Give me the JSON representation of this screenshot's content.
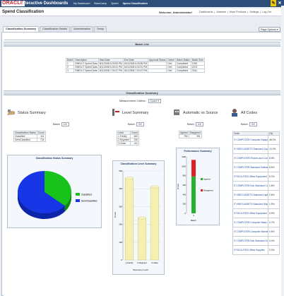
{
  "topbar": {
    "logo": "ORACLE",
    "app_title": "Interactive Dashboards",
    "nav": [
      "My Dashboard",
      "BaseCamp",
      "Speed",
      "Spend Classification"
    ]
  },
  "header": {
    "page_title": "Spend Classification",
    "welcome": "Welcome, Administrator!",
    "links": [
      "Dashboards",
      "Answers",
      "More Products",
      "Settings",
      "Log Out"
    ]
  },
  "tabs": [
    {
      "label": "Classification Summary",
      "selected": true
    },
    {
      "label": "Classification Details",
      "selected": false
    },
    {
      "label": "Administration",
      "selected": false
    },
    {
      "label": "Setup",
      "selected": false
    }
  ],
  "page_options": "Page Options",
  "batch_list": {
    "title": "Batch List",
    "columns": [
      "Batch",
      "Description",
      "Start Date",
      "End Date",
      "Approval Status",
      "Owner",
      "Batch Status",
      "Batch Size"
    ],
    "rows": [
      [
        "1",
        "EMEA IT Spend Data",
        "8/11/2008 6:33:55 PM",
        "8/11/2008 6:33:55 PM",
        "",
        "Deb",
        "Completed",
        "1196"
      ],
      [
        "2",
        "EMEA IT Spend Data",
        "8/11/2008 6:39:31 PM",
        "8/11/2008 6:44:31 PM",
        "",
        "Deb",
        "Completed",
        "2373"
      ],
      [
        "3",
        "EMEA IT Spend Data",
        "8/11/2008 7:00:47 PM",
        "8/11/2008 7:00:47 PM",
        "",
        "Deb",
        "Completed",
        "2341"
      ]
    ]
  },
  "classification_summary": {
    "title": "Classification Summary",
    "measurement_label": "Measurement Criteria :",
    "measurement_value": "Count"
  },
  "status_panel": {
    "title": "Status Summary",
    "batch_label": "Batch",
    "batch_value": "4",
    "columns": [
      "Classification Status",
      "Count"
    ],
    "rows": [
      [
        "Classified",
        "411"
      ],
      [
        "SemiClassified",
        "724"
      ]
    ],
    "chart_title": "Classification Status Summary",
    "legend": [
      "Classified",
      "SemiClassified"
    ]
  },
  "level_panel": {
    "title": "Level Summary",
    "batch_label": "Batch",
    "batch_value": "4",
    "columns": [
      "Level",
      "Count"
    ],
    "rows": [
      [
        "1-Family",
        "460"
      ],
      [
        "2-Segment",
        "236"
      ],
      [
        "3-Class",
        "411"
      ]
    ],
    "chart_title": "Classification Level Summary",
    "y_label": "Count",
    "x_label": "Taxonomy Level"
  },
  "auto_panel": {
    "title": "Automatic vs Source",
    "batch_label": "Batch",
    "batch_value": "4",
    "columns": [
      "Agreed",
      "Disagreed"
    ],
    "row": [
      "784",
      "351"
    ],
    "chart_title": "Performance Summary",
    "y_label": "Count",
    "legend": [
      "Agreed",
      "Disagreed"
    ],
    "x_label": "Batch"
  },
  "codes_panel": {
    "title": "All Codes",
    "batch_label": "Batch",
    "batch_value": "4",
    "columns": [
      "Code",
      "(%)"
    ],
    "rows": [
      [
        "IT.COMPUTER.Computer Equipment - Expense",
        "48.2%"
      ],
      [
        "IT.HSEO ASSETS.Standard Capital Computer Equipment",
        "10.2%"
      ],
      [
        "IT.COMPUTER.Printers and Consumables less than $1000",
        "8.9%"
      ],
      [
        "IT.COMPUTER.Standard Software - Expense",
        "6.6%"
      ],
      [
        "IT.FACILITIES.Office Equipment Repairs and Maintenance",
        "5.2%"
      ],
      [
        "IT.COMPUTER.Non Standard Computer Equipment Expense",
        "1.8%"
      ],
      [
        "IT.HSEO ASSETS.Standard Laptops and PCs",
        "2.6%"
      ],
      [
        "IT.HSEO ASSETS.Standard Disposal/Recovery",
        "1.5%"
      ],
      [
        "IT.FACILITIES.Office Equipment Rentals",
        "0.9%"
      ],
      [
        "IT.COMPUTER.Computer Basic Media",
        "0.7%"
      ],
      [
        "IT.COMPUTER.Computer Maintenance",
        "0.5%"
      ],
      [
        "IT.COMPUTER.Non Standard Software Expense",
        "0.4%"
      ],
      [
        "IT.FACILITIES.Office Supplies",
        "0.3%"
      ]
    ]
  },
  "chart_data": [
    {
      "type": "pie",
      "title": "Classification Status Summary",
      "categories": [
        "Classified",
        "SemiClassified"
      ],
      "values": [
        411,
        724
      ],
      "colors": [
        "#18c21a",
        "#1737e6"
      ],
      "legend": "right"
    },
    {
      "type": "bar",
      "title": "Classification Level Summary",
      "categories": [
        "1-Family",
        "2-Segment",
        "3-Class"
      ],
      "values": [
        460,
        236,
        411
      ],
      "ylabel": "Count",
      "xlabel": "Taxonomy Level",
      "ylim": [
        0,
        500
      ],
      "color": "#f5efb0"
    },
    {
      "type": "bar",
      "title": "Performance Summary",
      "stacked": true,
      "categories": [
        "4"
      ],
      "series": [
        {
          "name": "Agreed",
          "values": [
            784
          ]
        },
        {
          "name": "Disagreed",
          "values": [
            351
          ]
        }
      ],
      "colors": [
        "#28b030",
        "#dd2020"
      ],
      "ylabel": "Count",
      "xlabel": "Batch",
      "ylim": [
        0,
        1200
      ],
      "legend": "right"
    }
  ]
}
